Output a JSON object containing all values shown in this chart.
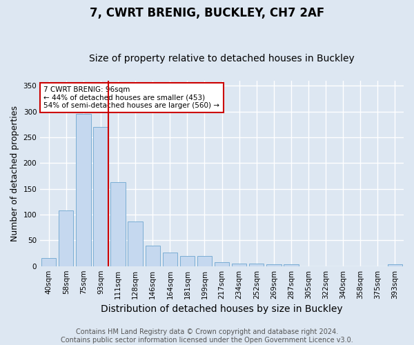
{
  "title": "7, CWRT BRENIG, BUCKLEY, CH7 2AF",
  "subtitle": "Size of property relative to detached houses in Buckley",
  "xlabel": "Distribution of detached houses by size in Buckley",
  "ylabel": "Number of detached properties",
  "categories": [
    "40sqm",
    "58sqm",
    "75sqm",
    "93sqm",
    "111sqm",
    "128sqm",
    "146sqm",
    "164sqm",
    "181sqm",
    "199sqm",
    "217sqm",
    "234sqm",
    "252sqm",
    "269sqm",
    "287sqm",
    "305sqm",
    "322sqm",
    "340sqm",
    "358sqm",
    "375sqm",
    "393sqm"
  ],
  "values": [
    15,
    108,
    295,
    270,
    163,
    86,
    40,
    27,
    19,
    19,
    7,
    5,
    5,
    3,
    3,
    0,
    0,
    0,
    0,
    0,
    3
  ],
  "bar_color": "#c5d8ef",
  "bar_edge_color": "#7aadd4",
  "bg_color": "#dde7f2",
  "grid_color": "#ffffff",
  "vline_x": 3.42,
  "vline_color": "#cc0000",
  "annotation_text": "7 CWRT BRENIG: 96sqm\n← 44% of detached houses are smaller (453)\n54% of semi-detached houses are larger (560) →",
  "annotation_box_color": "#cc0000",
  "ylim": [
    0,
    360
  ],
  "yticks": [
    0,
    50,
    100,
    150,
    200,
    250,
    300,
    350
  ],
  "footer": "Contains HM Land Registry data © Crown copyright and database right 2024.\nContains public sector information licensed under the Open Government Licence v3.0.",
  "title_fontsize": 12,
  "subtitle_fontsize": 10,
  "xlabel_fontsize": 10,
  "ylabel_fontsize": 9,
  "tick_fontsize": 7.5,
  "footer_fontsize": 7
}
